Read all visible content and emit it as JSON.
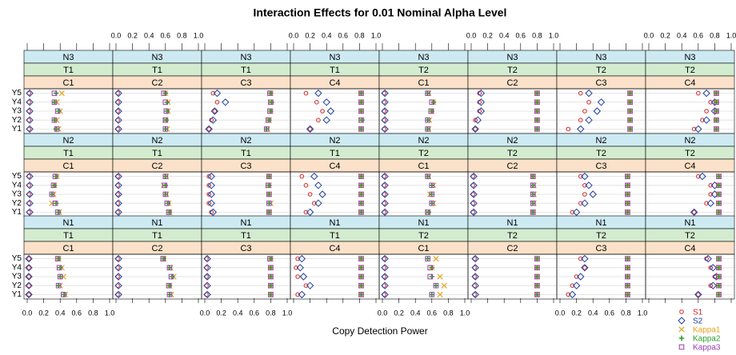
{
  "chart_data": {
    "type": "dot",
    "title": "Interaction Effects for 0.01 Nominal Alpha Level",
    "x_label": "Copy Detection Power",
    "categories": [
      "Y1",
      "Y2",
      "Y3",
      "Y4",
      "Y5"
    ],
    "xlim": [
      0,
      1
    ],
    "xticks": [
      {
        "value": 0,
        "label": "0.0"
      },
      0.2,
      0.4,
      0.6,
      0.8,
      {
        "value": 1,
        "label": "1.0"
      }
    ],
    "series": [
      {
        "name": "S1",
        "color": "#d62728",
        "shape": "circle"
      },
      {
        "name": "S2",
        "color": "#1f3fa0",
        "shape": "diamond"
      },
      {
        "name": "Kappa1",
        "color": "#e8a31c",
        "shape": "x"
      },
      {
        "name": "Kappa2",
        "color": "#2ca02c",
        "shape": "plus"
      },
      {
        "name": "Kappa3",
        "color": "#9b3fb5",
        "shape": "square"
      }
    ],
    "strip_colors": [
      "#cdeaf2",
      "#d3ecd0",
      "#fbe1c9"
    ],
    "panels": [
      {
        "strips": [
          "N3",
          "T1",
          "C1"
        ],
        "values": [
          [
            0.02,
            0.02,
            0.02,
            0.02,
            0.02
          ],
          [
            0.03,
            0.03,
            0.03,
            0.03,
            0.03
          ],
          [
            0.38,
            0.36,
            0.4,
            0.36,
            0.42
          ],
          [
            0.35,
            0.33,
            0.38,
            0.33,
            0.35
          ],
          [
            0.36,
            0.33,
            0.37,
            0.33,
            0.33
          ]
        ]
      },
      {
        "strips": [
          "N3",
          "T1",
          "C2"
        ],
        "values": [
          [
            0.02,
            0.02,
            0.02,
            0.02,
            0.02
          ],
          [
            0.03,
            0.03,
            0.03,
            0.03,
            0.03
          ],
          [
            0.62,
            0.6,
            0.63,
            0.63,
            0.6
          ],
          [
            0.6,
            0.61,
            0.62,
            0.62,
            0.6
          ],
          [
            0.6,
            0.6,
            0.61,
            0.6,
            0.58
          ]
        ]
      },
      {
        "strips": [
          "N3",
          "T1",
          "C3"
        ],
        "values": [
          [
            0.05,
            0.08,
            0.12,
            0.15,
            0.1
          ],
          [
            0.05,
            0.1,
            0.12,
            0.25,
            0.15
          ],
          [
            0.76,
            0.78,
            0.8,
            0.8,
            0.8
          ],
          [
            0.75,
            0.78,
            0.8,
            0.81,
            0.8
          ],
          [
            0.75,
            0.77,
            0.79,
            0.8,
            0.79
          ]
        ]
      },
      {
        "strips": [
          "N3",
          "T1",
          "C4"
        ],
        "values": [
          [
            0.2,
            0.3,
            0.35,
            0.28,
            0.15
          ],
          [
            0.2,
            0.4,
            0.45,
            0.4,
            0.3
          ],
          [
            0.82,
            0.82,
            0.82,
            0.82,
            0.82
          ],
          [
            0.82,
            0.83,
            0.82,
            0.82,
            0.82
          ],
          [
            0.82,
            0.82,
            0.82,
            0.82,
            0.82
          ]
        ]
      },
      {
        "strips": [
          "N3",
          "T2",
          "C1"
        ],
        "values": [
          [
            0.02,
            0.02,
            0.02,
            0.02,
            0.02
          ],
          [
            0.03,
            0.03,
            0.03,
            0.03,
            0.03
          ],
          [
            0.56,
            0.57,
            0.6,
            0.62,
            0.56
          ],
          [
            0.55,
            0.55,
            0.6,
            0.62,
            0.55
          ],
          [
            0.55,
            0.55,
            0.59,
            0.6,
            0.55
          ]
        ]
      },
      {
        "strips": [
          "N3",
          "T2",
          "C2"
        ],
        "values": [
          [
            0.05,
            0.05,
            0.1,
            0.1,
            0.1
          ],
          [
            0.05,
            0.08,
            0.12,
            0.12,
            0.12
          ],
          [
            0.8,
            0.8,
            0.8,
            0.8,
            0.8
          ],
          [
            0.8,
            0.8,
            0.8,
            0.8,
            0.8
          ],
          [
            0.8,
            0.8,
            0.8,
            0.8,
            0.8
          ]
        ]
      },
      {
        "strips": [
          "N3",
          "T2",
          "C3"
        ],
        "values": [
          [
            0.1,
            0.25,
            0.3,
            0.35,
            0.25
          ],
          [
            0.25,
            0.35,
            0.45,
            0.5,
            0.35
          ],
          [
            0.85,
            0.85,
            0.85,
            0.85,
            0.85
          ],
          [
            0.85,
            0.85,
            0.85,
            0.85,
            0.85
          ],
          [
            0.85,
            0.85,
            0.85,
            0.85,
            0.85
          ]
        ]
      },
      {
        "strips": [
          "N3",
          "T2",
          "C4"
        ],
        "values": [
          [
            0.55,
            0.65,
            0.7,
            0.75,
            0.6
          ],
          [
            0.6,
            0.7,
            0.8,
            0.8,
            0.7
          ],
          [
            0.82,
            0.82,
            0.82,
            0.82,
            0.82
          ],
          [
            0.82,
            0.82,
            0.82,
            0.82,
            0.82
          ],
          [
            0.82,
            0.82,
            0.82,
            0.82,
            0.82
          ]
        ]
      },
      {
        "strips": [
          "N2",
          "T1",
          "C1"
        ],
        "values": [
          [
            0.02,
            0.02,
            0.02,
            0.02,
            0.02
          ],
          [
            0.03,
            0.03,
            0.03,
            0.03,
            0.03
          ],
          [
            0.39,
            0.3,
            0.32,
            0.33,
            0.36
          ],
          [
            0.38,
            0.35,
            0.3,
            0.33,
            0.35
          ],
          [
            0.37,
            0.34,
            0.3,
            0.32,
            0.34
          ]
        ]
      },
      {
        "strips": [
          "N2",
          "T1",
          "C2"
        ],
        "values": [
          [
            0.02,
            0.02,
            0.02,
            0.02,
            0.02
          ],
          [
            0.03,
            0.03,
            0.03,
            0.03,
            0.03
          ],
          [
            0.65,
            0.64,
            0.61,
            0.58,
            0.61
          ],
          [
            0.65,
            0.63,
            0.6,
            0.6,
            0.6
          ],
          [
            0.64,
            0.62,
            0.6,
            0.59,
            0.6
          ]
        ]
      },
      {
        "strips": [
          "N2",
          "T1",
          "C3"
        ],
        "values": [
          [
            0.08,
            0.05,
            0.05,
            0.05,
            0.05
          ],
          [
            0.1,
            0.08,
            0.08,
            0.08,
            0.08
          ],
          [
            0.78,
            0.8,
            0.78,
            0.78,
            0.78
          ],
          [
            0.78,
            0.78,
            0.78,
            0.78,
            0.78
          ],
          [
            0.78,
            0.78,
            0.78,
            0.77,
            0.78
          ]
        ]
      },
      {
        "strips": [
          "N2",
          "T1",
          "C4"
        ],
        "values": [
          [
            0.15,
            0.25,
            0.2,
            0.15,
            0.1
          ],
          [
            0.2,
            0.3,
            0.35,
            0.3,
            0.25
          ],
          [
            0.82,
            0.82,
            0.82,
            0.82,
            0.82
          ],
          [
            0.82,
            0.82,
            0.82,
            0.82,
            0.82
          ],
          [
            0.82,
            0.82,
            0.82,
            0.82,
            0.82
          ]
        ]
      },
      {
        "strips": [
          "N2",
          "T2",
          "C1"
        ],
        "values": [
          [
            0.02,
            0.02,
            0.02,
            0.02,
            0.02
          ],
          [
            0.03,
            0.03,
            0.03,
            0.03,
            0.03
          ],
          [
            0.55,
            0.62,
            0.58,
            0.62,
            0.56
          ],
          [
            0.56,
            0.6,
            0.6,
            0.6,
            0.55
          ],
          [
            0.55,
            0.6,
            0.6,
            0.6,
            0.55
          ]
        ]
      },
      {
        "strips": [
          "N2",
          "T2",
          "C2"
        ],
        "values": [
          [
            0.02,
            0.02,
            0.02,
            0.02,
            0.02
          ],
          [
            0.03,
            0.03,
            0.03,
            0.03,
            0.03
          ],
          [
            0.75,
            0.76,
            0.76,
            0.76,
            0.75
          ],
          [
            0.75,
            0.75,
            0.75,
            0.75,
            0.75
          ],
          [
            0.75,
            0.75,
            0.75,
            0.75,
            0.75
          ]
        ]
      },
      {
        "strips": [
          "N2",
          "T2",
          "C3"
        ],
        "values": [
          [
            0.15,
            0.25,
            0.3,
            0.3,
            0.25
          ],
          [
            0.2,
            0.3,
            0.4,
            0.35,
            0.3
          ],
          [
            0.82,
            0.82,
            0.82,
            0.82,
            0.82
          ],
          [
            0.82,
            0.82,
            0.82,
            0.82,
            0.82
          ],
          [
            0.82,
            0.82,
            0.82,
            0.82,
            0.82
          ]
        ]
      },
      {
        "strips": [
          "N2",
          "T2",
          "C4"
        ],
        "values": [
          [
            0.55,
            0.7,
            0.75,
            0.75,
            0.6
          ],
          [
            0.55,
            0.75,
            0.8,
            0.8,
            0.65
          ],
          [
            0.85,
            0.85,
            0.85,
            0.85,
            0.85
          ],
          [
            0.85,
            0.85,
            0.85,
            0.85,
            0.85
          ],
          [
            0.85,
            0.85,
            0.85,
            0.85,
            0.85
          ]
        ]
      },
      {
        "strips": [
          "N1",
          "T1",
          "C1"
        ],
        "values": [
          [
            0.02,
            0.02,
            0.02,
            0.02,
            0.02
          ],
          [
            0.02,
            0.02,
            0.02,
            0.02,
            0.02
          ],
          [
            0.46,
            0.4,
            0.44,
            0.42,
            0.38
          ],
          [
            0.45,
            0.38,
            0.4,
            0.4,
            0.38
          ],
          [
            0.44,
            0.38,
            0.4,
            0.39,
            0.37
          ]
        ]
      },
      {
        "strips": [
          "N1",
          "T1",
          "C2"
        ],
        "values": [
          [
            0.02,
            0.02,
            0.02,
            0.02,
            0.02
          ],
          [
            0.03,
            0.03,
            0.03,
            0.03,
            0.03
          ],
          [
            0.67,
            0.65,
            0.7,
            0.66,
            0.58
          ],
          [
            0.65,
            0.65,
            0.68,
            0.65,
            0.58
          ],
          [
            0.65,
            0.64,
            0.67,
            0.65,
            0.57
          ]
        ]
      },
      {
        "strips": [
          "N1",
          "T1",
          "C3"
        ],
        "values": [
          [
            0.02,
            0.02,
            0.02,
            0.02,
            0.02
          ],
          [
            0.03,
            0.03,
            0.03,
            0.03,
            0.03
          ],
          [
            0.8,
            0.8,
            0.8,
            0.8,
            0.8
          ],
          [
            0.8,
            0.8,
            0.8,
            0.8,
            0.8
          ],
          [
            0.8,
            0.8,
            0.8,
            0.8,
            0.79
          ]
        ]
      },
      {
        "strips": [
          "N1",
          "T1",
          "C4"
        ],
        "values": [
          [
            0.05,
            0.15,
            0.05,
            0.03,
            0.05
          ],
          [
            0.1,
            0.2,
            0.12,
            0.08,
            0.1
          ],
          [
            0.82,
            0.82,
            0.82,
            0.82,
            0.82
          ],
          [
            0.82,
            0.82,
            0.82,
            0.82,
            0.82
          ],
          [
            0.82,
            0.82,
            0.82,
            0.82,
            0.82
          ]
        ]
      },
      {
        "strips": [
          "N1",
          "T2",
          "C1"
        ],
        "values": [
          [
            0.02,
            0.02,
            0.02,
            0.02,
            0.02
          ],
          [
            0.03,
            0.03,
            0.03,
            0.03,
            0.03
          ],
          [
            0.7,
            0.75,
            0.7,
            0.6,
            0.65
          ],
          [
            0.6,
            0.65,
            0.6,
            0.6,
            0.55
          ],
          [
            0.6,
            0.65,
            0.58,
            0.58,
            0.55
          ]
        ]
      },
      {
        "strips": [
          "N1",
          "T2",
          "C2"
        ],
        "values": [
          [
            0.04,
            0.04,
            0.04,
            0.04,
            0.04
          ],
          [
            0.05,
            0.05,
            0.05,
            0.05,
            0.05
          ],
          [
            0.8,
            0.8,
            0.8,
            0.8,
            0.8
          ],
          [
            0.8,
            0.8,
            0.8,
            0.8,
            0.8
          ],
          [
            0.8,
            0.8,
            0.8,
            0.8,
            0.8
          ]
        ]
      },
      {
        "strips": [
          "N1",
          "T2",
          "C3"
        ],
        "values": [
          [
            0.1,
            0.15,
            0.2,
            0.3,
            0.25
          ],
          [
            0.15,
            0.2,
            0.25,
            0.3,
            0.3
          ],
          [
            0.82,
            0.82,
            0.82,
            0.82,
            0.82
          ],
          [
            0.82,
            0.82,
            0.82,
            0.82,
            0.82
          ],
          [
            0.82,
            0.82,
            0.82,
            0.82,
            0.82
          ]
        ]
      },
      {
        "strips": [
          "N1",
          "T2",
          "C4"
        ],
        "values": [
          [
            0.6,
            0.75,
            0.8,
            0.75,
            0.7
          ],
          [
            0.6,
            0.78,
            0.82,
            0.78,
            0.72
          ],
          [
            0.85,
            0.85,
            0.85,
            0.85,
            0.85
          ],
          [
            0.85,
            0.85,
            0.85,
            0.85,
            0.85
          ],
          [
            0.85,
            0.85,
            0.85,
            0.85,
            0.85
          ]
        ]
      }
    ]
  }
}
